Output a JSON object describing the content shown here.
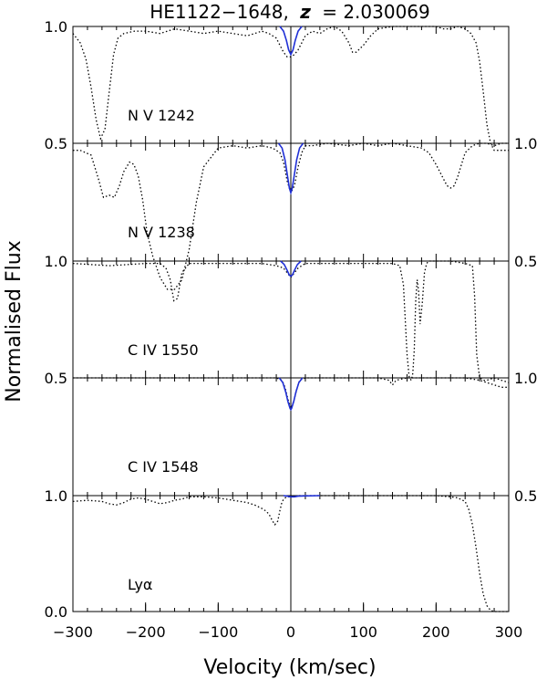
{
  "chart_data": {
    "type": "line",
    "title": "HE1122−1648, z = 2.030069",
    "title_parts": {
      "object": "HE1122−1648,",
      "zsym": "z",
      "zeq": "= 2.030069"
    },
    "xlabel": "Velocity (km/sec)",
    "ylabel": "Normalised Flux",
    "xlim": [
      -300,
      300
    ],
    "xticks": [
      -300,
      -200,
      -100,
      0,
      100,
      200,
      300
    ],
    "xtick_labels": [
      "−300",
      "−200",
      "−100",
      "0",
      "100",
      "200",
      "300"
    ],
    "colors": {
      "data": "#000000",
      "fit": "#1f2fd6",
      "axis": "#000000"
    },
    "panels": [
      {
        "label": "N V 1242",
        "ylim": [
          0.5,
          1.0
        ],
        "left_ticks": [
          {
            "v": 1.0,
            "t": "1.0"
          },
          {
            "v": 0.5,
            "t": "0.5"
          }
        ],
        "right_ticks": [],
        "data": {
          "x": [
            -300,
            -290,
            -282,
            -275,
            -268,
            -262,
            -256,
            -250,
            -244,
            -238,
            -230,
            -215,
            -200,
            -180,
            -160,
            -140,
            -120,
            -100,
            -80,
            -60,
            -50,
            -40,
            -30,
            -20,
            -15,
            -10,
            -5,
            0,
            5,
            10,
            15,
            20,
            30,
            40,
            50,
            60,
            70,
            80,
            85,
            90,
            100,
            110,
            120,
            140,
            160,
            180,
            200,
            210,
            220,
            230,
            240,
            248,
            255,
            260,
            265,
            270,
            275,
            280,
            290,
            300
          ],
          "y": [
            0.97,
            0.93,
            0.86,
            0.74,
            0.6,
            0.52,
            0.56,
            0.72,
            0.88,
            0.95,
            0.97,
            0.98,
            0.98,
            0.97,
            0.99,
            0.98,
            0.97,
            0.98,
            0.97,
            0.96,
            0.97,
            0.98,
            0.97,
            0.95,
            0.92,
            0.89,
            0.87,
            0.87,
            0.88,
            0.9,
            0.93,
            0.96,
            0.98,
            0.97,
            0.99,
            1.0,
            0.98,
            0.93,
            0.89,
            0.89,
            0.92,
            0.96,
            0.99,
            1.0,
            1.0,
            1.0,
            1.0,
            0.99,
            0.99,
            1.0,
            0.99,
            0.97,
            0.93,
            0.85,
            0.72,
            0.58,
            0.5,
            0.47,
            0.47,
            0.47
          ]
        },
        "fit": {
          "x": [
            -15,
            -10,
            -6,
            -3,
            0,
            3,
            6,
            10,
            15
          ],
          "y": [
            1.0,
            0.98,
            0.94,
            0.9,
            0.88,
            0.9,
            0.94,
            0.98,
            1.0
          ]
        }
      },
      {
        "label": "N V 1238",
        "ylim": [
          0.5,
          1.0
        ],
        "left_ticks": [],
        "right_ticks": [
          {
            "v": 1.0,
            "t": "1.0"
          },
          {
            "v": 0.5,
            "t": "0.5"
          }
        ],
        "data": {
          "x": [
            -300,
            -290,
            -275,
            -265,
            -258,
            -250,
            -243,
            -236,
            -230,
            -222,
            -216,
            -210,
            -204,
            -198,
            -190,
            -180,
            -170,
            -160,
            -150,
            -140,
            -130,
            -120,
            -100,
            -80,
            -60,
            -40,
            -25,
            -15,
            -10,
            -5,
            0,
            5,
            10,
            15,
            20,
            30,
            50,
            80,
            100,
            120,
            140,
            160,
            180,
            190,
            200,
            210,
            215,
            220,
            225,
            230,
            235,
            240,
            250,
            260,
            270,
            280,
            290,
            300
          ],
          "y": [
            0.97,
            0.97,
            0.95,
            0.85,
            0.77,
            0.78,
            0.77,
            0.82,
            0.88,
            0.92,
            0.91,
            0.86,
            0.76,
            0.62,
            0.52,
            0.43,
            0.38,
            0.38,
            0.42,
            0.55,
            0.75,
            0.9,
            0.98,
            0.99,
            0.98,
            0.99,
            0.98,
            0.96,
            0.92,
            0.84,
            0.79,
            0.82,
            0.9,
            0.96,
            0.99,
            0.99,
            1.0,
            0.99,
            1.0,
            0.99,
            1.0,
            0.99,
            0.98,
            0.96,
            0.91,
            0.85,
            0.82,
            0.81,
            0.82,
            0.86,
            0.91,
            0.96,
            0.99,
            1.0,
            1.0,
            0.99,
            1.0,
            1.0
          ]
        },
        "fit": {
          "x": [
            -17,
            -12,
            -8,
            -5,
            -2,
            0,
            2,
            5,
            8,
            12,
            17
          ],
          "y": [
            1.0,
            0.98,
            0.93,
            0.87,
            0.81,
            0.79,
            0.81,
            0.87,
            0.93,
            0.98,
            1.0
          ]
        }
      },
      {
        "label": "C IV 1550",
        "ylim": [
          0.5,
          1.0
        ],
        "left_ticks": [
          {
            "v": 1.0,
            "t": "1.0"
          },
          {
            "v": 0.5,
            "t": "0.5"
          }
        ],
        "right_ticks": [],
        "data": {
          "x": [
            -300,
            -250,
            -200,
            -180,
            -172,
            -166,
            -161,
            -156,
            -150,
            -140,
            -120,
            -100,
            -80,
            -60,
            -40,
            -20,
            -10,
            -5,
            0,
            5,
            10,
            20,
            40,
            60,
            80,
            100,
            120,
            140,
            150,
            155,
            160,
            163,
            166,
            168,
            170,
            172,
            174,
            176,
            178,
            181,
            184,
            187,
            190,
            200,
            220,
            240,
            250,
            253,
            256,
            260,
            265,
            270,
            280,
            290,
            300
          ],
          "y": [
            0.99,
            0.98,
            0.99,
            0.99,
            0.97,
            0.92,
            0.83,
            0.84,
            0.95,
            0.99,
            0.99,
            0.99,
            0.99,
            0.99,
            0.99,
            0.98,
            0.97,
            0.95,
            0.93,
            0.95,
            0.97,
            0.99,
            0.99,
            0.99,
            0.99,
            0.99,
            0.99,
            0.99,
            0.98,
            0.9,
            0.6,
            0.5,
            0.49,
            0.52,
            0.62,
            0.83,
            0.92,
            0.87,
            0.73,
            0.82,
            0.95,
            0.99,
            1.0,
            1.0,
            1.0,
            0.99,
            0.98,
            0.85,
            0.6,
            0.5,
            0.49,
            0.49,
            0.5,
            0.49,
            0.48
          ]
        },
        "fit": {
          "x": [
            -14,
            -9,
            -5,
            -2,
            0,
            2,
            5,
            9,
            14
          ],
          "y": [
            1.0,
            0.985,
            0.96,
            0.94,
            0.935,
            0.94,
            0.96,
            0.985,
            1.0
          ]
        }
      },
      {
        "label": "C IV 1548",
        "ylim": [
          0.5,
          1.0
        ],
        "left_ticks": [],
        "right_ticks": [
          {
            "v": 1.0,
            "t": "1.0"
          },
          {
            "v": 0.5,
            "t": "0.5"
          }
        ],
        "data": {
          "x": [
            -300,
            -250,
            -200,
            -150,
            -100,
            -50,
            -20,
            -12,
            -8,
            -4,
            0,
            4,
            8,
            12,
            20,
            40,
            80,
            120,
            135,
            140,
            145,
            160,
            180,
            200,
            220,
            240,
            260,
            270,
            280,
            290,
            300
          ],
          "y": [
            1.0,
            1.0,
            1.0,
            1.0,
            1.0,
            1.0,
            1.0,
            0.99,
            0.96,
            0.91,
            0.87,
            0.9,
            0.95,
            0.99,
            1.0,
            1.0,
            1.0,
            1.0,
            0.99,
            0.97,
            0.99,
            1.0,
            1.0,
            1.0,
            1.0,
            1.0,
            0.99,
            0.98,
            0.97,
            0.96,
            0.96
          ]
        },
        "fit": {
          "x": [
            -16,
            -11,
            -7,
            -4,
            -1,
            0,
            1,
            4,
            7,
            11,
            16
          ],
          "y": [
            1.0,
            0.98,
            0.94,
            0.9,
            0.87,
            0.865,
            0.87,
            0.9,
            0.94,
            0.98,
            1.0
          ]
        }
      },
      {
        "label": "Lyα",
        "ylim": [
          0.0,
          1.0
        ],
        "left_ticks": [
          {
            "v": 1.0,
            "t": "1.0"
          },
          {
            "v": 0.0,
            "t": "0.0"
          }
        ],
        "right_ticks": [],
        "data": {
          "x": [
            -300,
            -280,
            -260,
            -250,
            -240,
            -230,
            -220,
            -210,
            -200,
            -190,
            -180,
            -170,
            -160,
            -150,
            -140,
            -120,
            -100,
            -80,
            -60,
            -50,
            -40,
            -35,
            -30,
            -26,
            -22,
            -18,
            -15,
            -12,
            -8,
            -4,
            0,
            10,
            30,
            60,
            100,
            140,
            180,
            200,
            220,
            230,
            240,
            245,
            250,
            255,
            260,
            265,
            270,
            275,
            280,
            290,
            300
          ],
          "y": [
            0.95,
            0.96,
            0.95,
            0.93,
            0.92,
            0.94,
            0.97,
            0.98,
            0.97,
            0.95,
            0.93,
            0.94,
            0.96,
            0.97,
            0.99,
            0.99,
            0.98,
            0.96,
            0.94,
            0.92,
            0.89,
            0.87,
            0.84,
            0.79,
            0.75,
            0.78,
            0.87,
            0.95,
            0.98,
            0.99,
            0.99,
            1.0,
            1.0,
            1.0,
            1.0,
            1.0,
            1.0,
            1.0,
            0.99,
            0.98,
            0.95,
            0.88,
            0.75,
            0.55,
            0.33,
            0.15,
            0.05,
            0.01,
            0.0,
            0.0,
            0.0
          ]
        },
        "fit": {
          "x": [
            -10,
            -5,
            0,
            5,
            10,
            20,
            40
          ],
          "y": [
            1.0,
            0.995,
            0.99,
            0.99,
            0.995,
            0.998,
            1.0
          ]
        }
      }
    ]
  }
}
